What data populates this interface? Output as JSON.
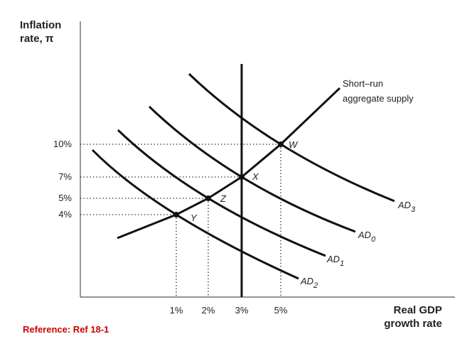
{
  "y_axis": {
    "title": [
      "Inflation",
      "rate, π"
    ],
    "ticks": [
      "10%",
      "7%",
      "5%",
      "4%"
    ]
  },
  "x_axis": {
    "title": [
      "Real GDP",
      "growth rate"
    ],
    "ticks": [
      "1%",
      "2%",
      "3%",
      "5%"
    ]
  },
  "curves": {
    "sras": [
      "Short–run",
      "aggregate supply"
    ],
    "ad": [
      {
        "name": "AD",
        "sub": "3"
      },
      {
        "name": "AD",
        "sub": "0"
      },
      {
        "name": "AD",
        "sub": "1"
      },
      {
        "name": "AD",
        "sub": "2"
      }
    ]
  },
  "points": [
    "W",
    "X",
    "Z",
    "Y"
  ],
  "reference": "Reference: Ref 18-1"
}
